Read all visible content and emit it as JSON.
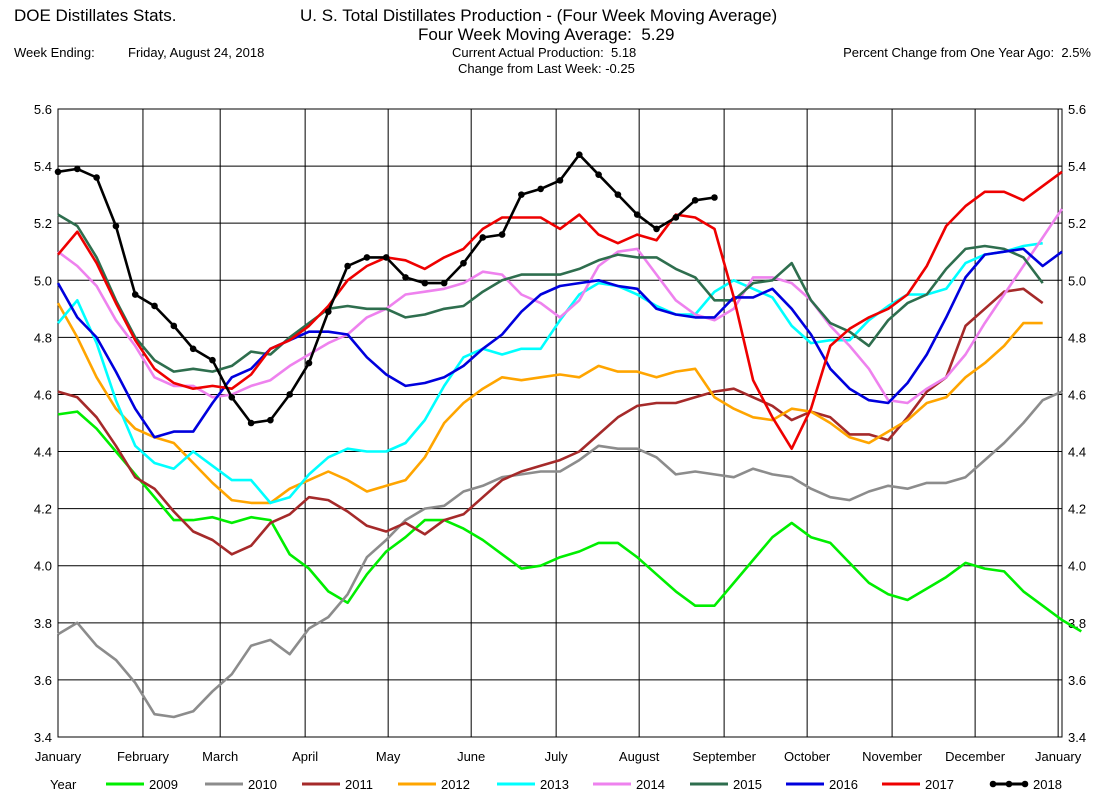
{
  "header": {
    "app_title": "DOE Distillates Stats.",
    "title": "U. S. Total Distillates Production - (Four Week Moving Average)",
    "subtitle_label": "Four Week Moving Average:",
    "subtitle_value": "5.29",
    "week_ending_label": "Week Ending:",
    "week_ending_value": "Friday, August 24, 2018",
    "current_label": "Current Actual Production:",
    "current_value": "5.18",
    "change_label": "Change from Last Week:",
    "change_value": "-0.25",
    "pct_label": "Percent Change from One Year Ago:",
    "pct_value": "2.5%"
  },
  "chart_data": {
    "type": "line",
    "x_unit": "week of year",
    "ylim": [
      3.4,
      5.6
    ],
    "yticks": [
      "3.4",
      "3.6",
      "3.8",
      "4.0",
      "4.2",
      "4.4",
      "4.6",
      "4.8",
      "5.0",
      "5.2",
      "5.4",
      "5.6"
    ],
    "xlim": [
      1,
      53
    ],
    "month_labels": [
      "January",
      "February",
      "March",
      "April",
      "May",
      "June",
      "July",
      "August",
      "September",
      "October",
      "November",
      "December",
      "January"
    ],
    "month_weeks": [
      1,
      5.4,
      9.4,
      13.8,
      18.1,
      22.4,
      26.8,
      31.1,
      35.5,
      39.8,
      44.2,
      48.5,
      52.8
    ],
    "grid": true,
    "legend_position": "bottom",
    "legend_title": "Year",
    "series": [
      {
        "name": "2009",
        "color": "#00ee00",
        "markers": false,
        "values": [
          4.53,
          4.54,
          4.48,
          4.4,
          4.32,
          4.24,
          4.16,
          4.16,
          4.17,
          4.15,
          4.17,
          4.16,
          4.04,
          3.99,
          3.91,
          3.87,
          3.97,
          4.05,
          4.1,
          4.16,
          4.16,
          4.13,
          4.09,
          4.04,
          3.99,
          4.0,
          4.03,
          4.05,
          4.08,
          4.08,
          4.03,
          3.97,
          3.91,
          3.86,
          3.86,
          3.94,
          4.02,
          4.1,
          4.15,
          4.1,
          4.08,
          4.01,
          3.94,
          3.9,
          3.88,
          3.92,
          3.96,
          4.01,
          3.99,
          3.98,
          3.91,
          3.86,
          3.81,
          3.77
        ]
      },
      {
        "name": "2010",
        "color": "#8c8c8c",
        "markers": false,
        "values": [
          3.76,
          3.8,
          3.72,
          3.67,
          3.59,
          3.48,
          3.47,
          3.49,
          3.56,
          3.62,
          3.72,
          3.74,
          3.69,
          3.78,
          3.82,
          3.9,
          4.03,
          4.09,
          4.16,
          4.2,
          4.21,
          4.26,
          4.28,
          4.31,
          4.32,
          4.33,
          4.33,
          4.37,
          4.42,
          4.41,
          4.41,
          4.38,
          4.32,
          4.33,
          4.32,
          4.31,
          4.34,
          4.32,
          4.31,
          4.27,
          4.24,
          4.23,
          4.26,
          4.28,
          4.27,
          4.29,
          4.29,
          4.31,
          4.37,
          4.43,
          4.5,
          4.58,
          4.61
        ]
      },
      {
        "name": "2011",
        "color": "#a52a2a",
        "markers": false,
        "values": [
          4.61,
          4.59,
          4.52,
          4.42,
          4.31,
          4.27,
          4.19,
          4.12,
          4.09,
          4.04,
          4.07,
          4.15,
          4.18,
          4.24,
          4.23,
          4.19,
          4.14,
          4.12,
          4.15,
          4.11,
          4.16,
          4.18,
          4.24,
          4.3,
          4.33,
          4.35,
          4.37,
          4.4,
          4.46,
          4.52,
          4.56,
          4.57,
          4.57,
          4.59,
          4.61,
          4.62,
          4.59,
          4.56,
          4.51,
          4.54,
          4.52,
          4.46,
          4.46,
          4.44,
          4.52,
          4.61,
          4.66,
          4.84,
          4.9,
          4.96,
          4.97,
          4.92
        ]
      },
      {
        "name": "2012",
        "color": "#ffa500",
        "markers": false,
        "values": [
          4.92,
          4.8,
          4.66,
          4.55,
          4.48,
          4.45,
          4.43,
          4.36,
          4.29,
          4.23,
          4.22,
          4.22,
          4.27,
          4.3,
          4.33,
          4.3,
          4.26,
          4.28,
          4.3,
          4.38,
          4.5,
          4.57,
          4.62,
          4.66,
          4.65,
          4.66,
          4.67,
          4.66,
          4.7,
          4.68,
          4.68,
          4.66,
          4.68,
          4.69,
          4.59,
          4.55,
          4.52,
          4.51,
          4.55,
          4.54,
          4.5,
          4.45,
          4.43,
          4.47,
          4.51,
          4.57,
          4.59,
          4.66,
          4.71,
          4.77,
          4.85,
          4.85
        ]
      },
      {
        "name": "2013",
        "color": "#00ffff",
        "markers": false,
        "values": [
          4.85,
          4.93,
          4.78,
          4.58,
          4.42,
          4.36,
          4.34,
          4.4,
          4.35,
          4.3,
          4.3,
          4.22,
          4.24,
          4.32,
          4.38,
          4.41,
          4.4,
          4.4,
          4.43,
          4.51,
          4.63,
          4.73,
          4.76,
          4.74,
          4.76,
          4.76,
          4.86,
          4.95,
          4.99,
          4.98,
          4.95,
          4.91,
          4.88,
          4.88,
          4.96,
          5.0,
          4.97,
          4.94,
          4.84,
          4.78,
          4.79,
          4.79,
          4.86,
          4.91,
          4.95,
          4.95,
          4.97,
          5.06,
          5.09,
          5.1,
          5.12,
          5.13
        ]
      },
      {
        "name": "2014",
        "color": "#ee82ee",
        "markers": false,
        "values": [
          5.1,
          5.05,
          4.98,
          4.86,
          4.77,
          4.66,
          4.63,
          4.63,
          4.59,
          4.6,
          4.63,
          4.65,
          4.7,
          4.74,
          4.78,
          4.81,
          4.87,
          4.9,
          4.95,
          4.96,
          4.97,
          4.99,
          5.03,
          5.02,
          4.95,
          4.92,
          4.87,
          4.93,
          5.05,
          5.1,
          5.11,
          5.02,
          4.93,
          4.88,
          4.86,
          4.9,
          5.01,
          5.01,
          4.99,
          4.93,
          4.84,
          4.77,
          4.69,
          4.58,
          4.57,
          4.62,
          4.66,
          4.74,
          4.85,
          4.95,
          5.05,
          5.15,
          5.25
        ]
      },
      {
        "name": "2015",
        "color": "#2e6e4e",
        "markers": false,
        "values": [
          5.23,
          5.19,
          5.08,
          4.93,
          4.8,
          4.72,
          4.68,
          4.69,
          4.68,
          4.7,
          4.75,
          4.74,
          4.8,
          4.85,
          4.9,
          4.91,
          4.9,
          4.9,
          4.87,
          4.88,
          4.9,
          4.91,
          4.96,
          5.0,
          5.02,
          5.02,
          5.02,
          5.04,
          5.07,
          5.09,
          5.08,
          5.08,
          5.04,
          5.01,
          4.93,
          4.93,
          4.99,
          5.0,
          5.06,
          4.93,
          4.85,
          4.82,
          4.77,
          4.86,
          4.92,
          4.95,
          5.04,
          5.11,
          5.12,
          5.11,
          5.08,
          4.99
        ]
      },
      {
        "name": "2016",
        "color": "#0000dd",
        "markers": false,
        "values": [
          4.99,
          4.87,
          4.8,
          4.68,
          4.55,
          4.45,
          4.47,
          4.47,
          4.57,
          4.66,
          4.69,
          4.76,
          4.79,
          4.82,
          4.82,
          4.81,
          4.73,
          4.67,
          4.63,
          4.64,
          4.66,
          4.7,
          4.76,
          4.81,
          4.89,
          4.95,
          4.98,
          4.99,
          5.0,
          4.98,
          4.97,
          4.9,
          4.88,
          4.87,
          4.87,
          4.94,
          4.94,
          4.97,
          4.9,
          4.81,
          4.69,
          4.62,
          4.58,
          4.57,
          4.64,
          4.74,
          4.87,
          5.01,
          5.09,
          5.1,
          5.11,
          5.05,
          5.1
        ]
      },
      {
        "name": "2017",
        "color": "#ee0000",
        "markers": false,
        "values": [
          5.09,
          5.17,
          5.06,
          4.92,
          4.79,
          4.69,
          4.64,
          4.62,
          4.63,
          4.62,
          4.67,
          4.76,
          4.79,
          4.84,
          4.91,
          5.0,
          5.05,
          5.08,
          5.07,
          5.04,
          5.08,
          5.11,
          5.18,
          5.22,
          5.22,
          5.22,
          5.18,
          5.23,
          5.16,
          5.13,
          5.16,
          5.14,
          5.23,
          5.22,
          5.18,
          4.94,
          4.65,
          4.52,
          4.41,
          4.55,
          4.77,
          4.83,
          4.87,
          4.9,
          4.95,
          5.05,
          5.19,
          5.26,
          5.31,
          5.31,
          5.28,
          5.33,
          5.38
        ]
      },
      {
        "name": "2018",
        "color": "#000000",
        "markers": true,
        "values": [
          5.38,
          5.39,
          5.36,
          5.19,
          4.95,
          4.91,
          4.84,
          4.76,
          4.72,
          4.59,
          4.5,
          4.51,
          4.6,
          4.71,
          4.89,
          5.05,
          5.08,
          5.08,
          5.01,
          4.99,
          4.99,
          5.06,
          5.15,
          5.16,
          5.3,
          5.32,
          5.35,
          5.44,
          5.37,
          5.3,
          5.23,
          5.18,
          5.22,
          5.28,
          5.29
        ]
      }
    ]
  }
}
